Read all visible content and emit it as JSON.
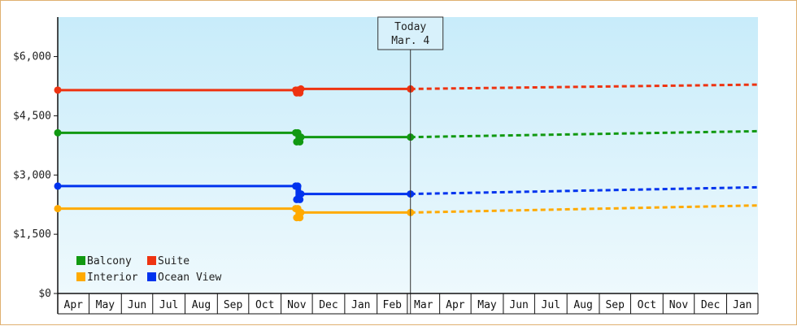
{
  "chart_data": {
    "type": "line",
    "title": "",
    "xlabel": "",
    "ylabel": "",
    "ylim": [
      0,
      7000
    ],
    "y_ticks": [
      0,
      1500,
      3000,
      4500,
      6000
    ],
    "y_tick_labels": [
      "$0",
      "$1,500",
      "$3,000",
      "$4,500",
      "$6,000"
    ],
    "x_range": [
      "2019-04-01",
      "2021-01-31"
    ],
    "month_labels": [
      "Apr",
      "May",
      "Jun",
      "Jul",
      "Aug",
      "Sep",
      "Oct",
      "Nov",
      "Dec",
      "Jan",
      "Feb",
      "Mar",
      "Apr",
      "May",
      "Jun",
      "Jul",
      "Aug",
      "Sep",
      "Oct",
      "Nov",
      "Dec",
      "Jan"
    ],
    "today": {
      "date": "2020-03-04",
      "line1": "Today",
      "line2": "Mar. 4"
    },
    "grid": false,
    "legend_position": "bottom-left",
    "colors": {
      "Balcony": "#119911",
      "Suite": "#ee3311",
      "Interior": "#ffaa00",
      "Ocean View": "#0033ee",
      "plot_bg_top": "#c8ecfa",
      "plot_bg_bottom": "#eef9fd"
    },
    "legend_order": [
      "Balcony",
      "Suite",
      "Interior",
      "Ocean View"
    ],
    "series": [
      {
        "name": "Suite",
        "actual": [
          {
            "x": "2019-04-01",
            "y": 5150
          },
          {
            "x": "2019-11-15",
            "y": 5150
          },
          {
            "x": "2019-11-16",
            "y": 5080
          },
          {
            "x": "2019-11-17",
            "y": 5150
          },
          {
            "x": "2019-11-19",
            "y": 5080
          },
          {
            "x": "2019-11-20",
            "y": 5180
          },
          {
            "x": "2020-03-04",
            "y": 5180
          }
        ],
        "forecast": [
          {
            "x": "2020-03-04",
            "y": 5180
          },
          {
            "x": "2021-01-31",
            "y": 5290
          }
        ]
      },
      {
        "name": "Balcony",
        "actual": [
          {
            "x": "2019-04-01",
            "y": 4070
          },
          {
            "x": "2019-11-15",
            "y": 4070
          },
          {
            "x": "2019-11-16",
            "y": 3840
          },
          {
            "x": "2019-11-17",
            "y": 4070
          },
          {
            "x": "2019-11-19",
            "y": 3840
          },
          {
            "x": "2019-11-20",
            "y": 3960
          },
          {
            "x": "2020-03-04",
            "y": 3960
          }
        ],
        "forecast": [
          {
            "x": "2020-03-04",
            "y": 3960
          },
          {
            "x": "2021-01-31",
            "y": 4110
          }
        ]
      },
      {
        "name": "Ocean View",
        "actual": [
          {
            "x": "2019-04-01",
            "y": 2720
          },
          {
            "x": "2019-11-15",
            "y": 2720
          },
          {
            "x": "2019-11-16",
            "y": 2380
          },
          {
            "x": "2019-11-17",
            "y": 2720
          },
          {
            "x": "2019-11-19",
            "y": 2380
          },
          {
            "x": "2019-11-20",
            "y": 2520
          },
          {
            "x": "2020-03-04",
            "y": 2520
          }
        ],
        "forecast": [
          {
            "x": "2020-03-04",
            "y": 2520
          },
          {
            "x": "2021-01-31",
            "y": 2690
          }
        ]
      },
      {
        "name": "Interior",
        "actual": [
          {
            "x": "2019-04-01",
            "y": 2150
          },
          {
            "x": "2019-11-15",
            "y": 2150
          },
          {
            "x": "2019-11-16",
            "y": 1920
          },
          {
            "x": "2019-11-17",
            "y": 2150
          },
          {
            "x": "2019-11-19",
            "y": 1920
          },
          {
            "x": "2019-11-20",
            "y": 2050
          },
          {
            "x": "2020-03-04",
            "y": 2050
          }
        ],
        "forecast": [
          {
            "x": "2020-03-04",
            "y": 2050
          },
          {
            "x": "2021-01-31",
            "y": 2230
          }
        ]
      }
    ]
  }
}
